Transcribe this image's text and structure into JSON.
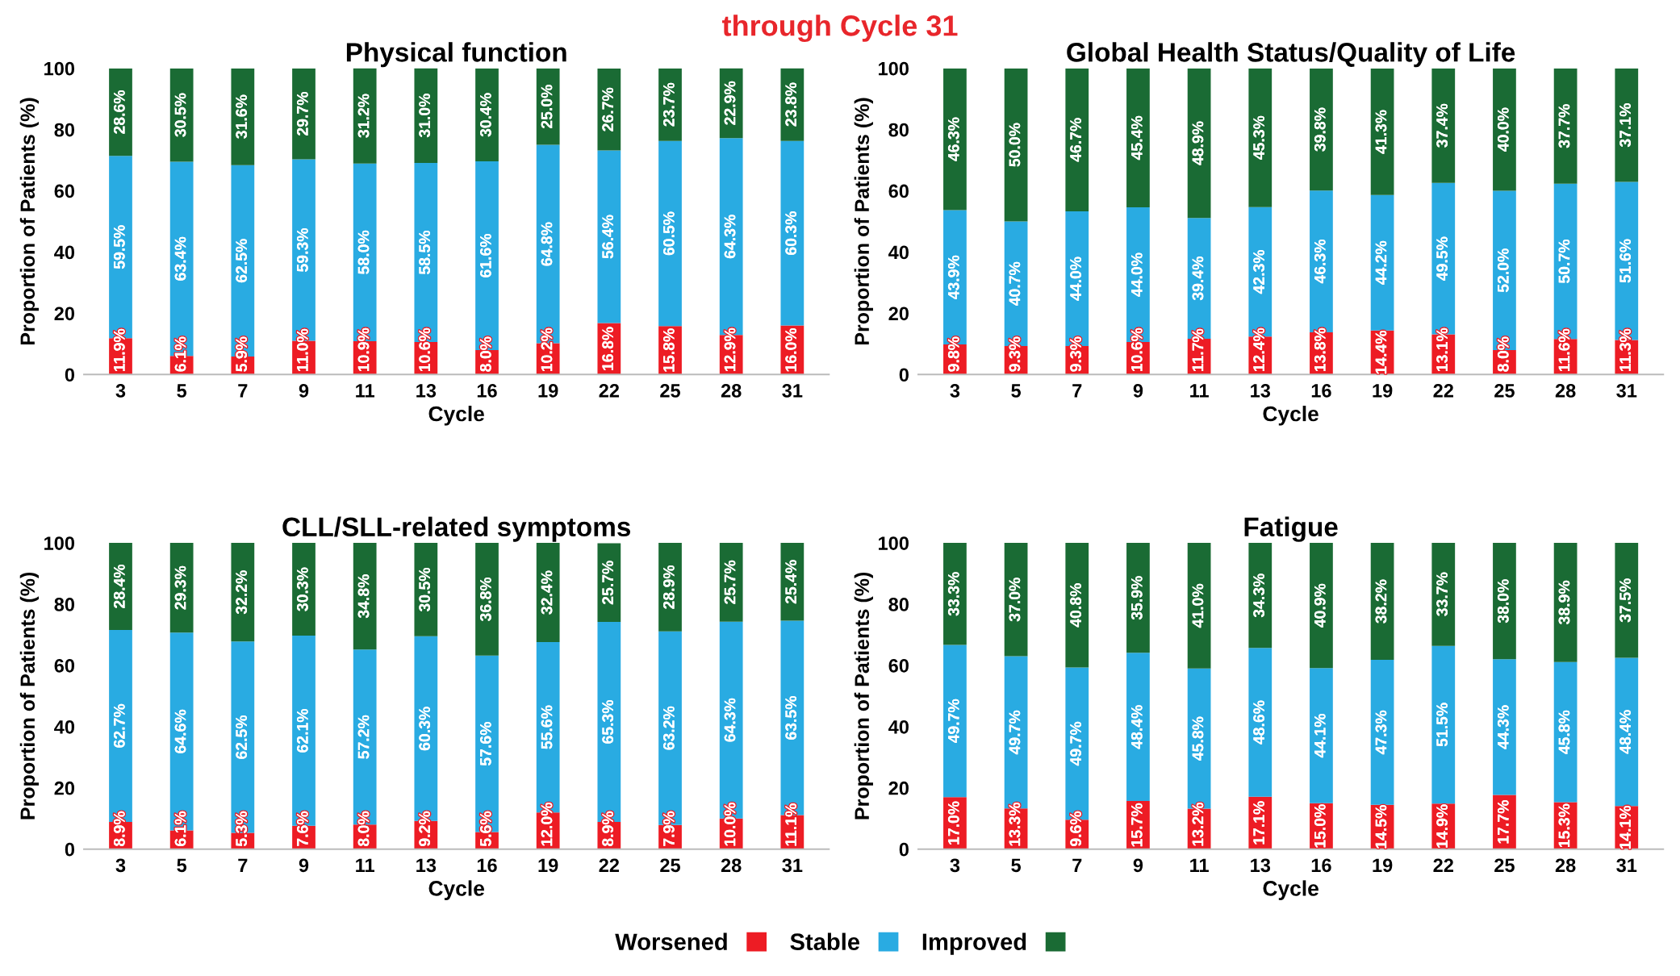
{
  "chart_data": [
    {
      "type": "bar",
      "stacked": true,
      "title": "Physical function",
      "xlabel": "Cycle",
      "ylabel": "Proportion of Patients (%)",
      "annotations": [
        "through Cycle 31"
      ],
      "categories": [
        "3",
        "5",
        "7",
        "9",
        "11",
        "13",
        "16",
        "19",
        "22",
        "25",
        "28",
        "31"
      ],
      "ylim": [
        0,
        100
      ],
      "yticks": [
        0,
        20,
        40,
        60,
        80,
        100
      ],
      "grid": false,
      "series": [
        {
          "color": "#ed1c24",
          "values": [
            11.9,
            6.1,
            5.9,
            11.0,
            10.9,
            10.6,
            8.0,
            10.2,
            16.8,
            15.8,
            12.9,
            16.0
          ],
          "value_labels": [
            "11.9%",
            "6.1%",
            "5.9%",
            "11.0%",
            "10.9%",
            "10.6%",
            "8.0%",
            "10.2%",
            "16.8%",
            "15.8%",
            "12.9%",
            "16.0%"
          ]
        },
        {
          "color": "#29abe2",
          "values": [
            59.5,
            63.4,
            62.5,
            59.3,
            58.0,
            58.5,
            61.6,
            64.8,
            56.4,
            60.5,
            64.3,
            60.3
          ],
          "value_labels": [
            "59.5%",
            "63.4%",
            "62.5%",
            "59.3%",
            "58.0%",
            "58.5%",
            "61.6%",
            "64.8%",
            "56.4%",
            "60.5%",
            "64.3%",
            "60.3%"
          ]
        },
        {
          "color": "#1a6b34",
          "values": [
            28.6,
            30.5,
            31.6,
            29.7,
            31.2,
            31.0,
            30.4,
            25.0,
            26.7,
            23.7,
            22.9,
            23.8
          ],
          "value_labels": [
            "28.6%",
            "30.5%",
            "31.6%",
            "29.7%",
            "31.2%",
            "31.0%",
            "30.4%",
            "25.0%",
            "26.7%",
            "23.7%",
            "22.9%",
            "23.8%"
          ]
        }
      ]
    },
    {
      "type": "bar",
      "stacked": true,
      "title": "Global Health Status/Quality of Life",
      "xlabel": "Cycle",
      "ylabel": "Proportion of Patients (%)",
      "categories": [
        "3",
        "5",
        "7",
        "9",
        "11",
        "13",
        "16",
        "19",
        "22",
        "25",
        "28",
        "31"
      ],
      "ylim": [
        0,
        100
      ],
      "yticks": [
        0,
        20,
        40,
        60,
        80,
        100
      ],
      "grid": false,
      "series": [
        {
          "color": "#ed1c24",
          "values": [
            9.8,
            9.3,
            9.3,
            10.6,
            11.7,
            12.4,
            13.8,
            14.4,
            13.1,
            8.0,
            11.6,
            11.3
          ],
          "value_labels": [
            "9.8%",
            "9.3%",
            "9.3%",
            "10.6%",
            "11.7%",
            "12.4%",
            "13.8%",
            "14.4%",
            "13.1%",
            "8.0%",
            "11.6%",
            "11.3%"
          ]
        },
        {
          "color": "#29abe2",
          "values": [
            43.9,
            40.7,
            44.0,
            44.0,
            39.4,
            42.3,
            46.3,
            44.2,
            49.5,
            52.0,
            50.7,
            51.6
          ],
          "value_labels": [
            "43.9%",
            "40.7%",
            "44.0%",
            "44.0%",
            "39.4%",
            "42.3%",
            "46.3%",
            "44.2%",
            "49.5%",
            "52.0%",
            "50.7%",
            "51.6%"
          ]
        },
        {
          "color": "#1a6b34",
          "values": [
            46.3,
            50.0,
            46.7,
            45.4,
            48.9,
            45.3,
            39.8,
            41.3,
            37.4,
            40.0,
            37.7,
            37.1
          ],
          "value_labels": [
            "46.3%",
            "50.0%",
            "46.7%",
            "45.4%",
            "48.9%",
            "45.3%",
            "39.8%",
            "41.3%",
            "37.4%",
            "40.0%",
            "37.7%",
            "37.1%"
          ]
        }
      ]
    },
    {
      "type": "bar",
      "stacked": true,
      "title": "CLL/SLL-related symptoms",
      "xlabel": "Cycle",
      "ylabel": "Proportion of Patients (%)",
      "categories": [
        "3",
        "5",
        "7",
        "9",
        "11",
        "13",
        "16",
        "19",
        "22",
        "25",
        "28",
        "31"
      ],
      "ylim": [
        0,
        100
      ],
      "yticks": [
        0,
        20,
        40,
        60,
        80,
        100
      ],
      "grid": false,
      "series": [
        {
          "color": "#ed1c24",
          "values": [
            8.9,
            6.1,
            5.3,
            7.6,
            8.0,
            9.2,
            5.6,
            12.0,
            8.9,
            7.9,
            10.0,
            11.1
          ],
          "value_labels": [
            "8.9%",
            "6.1%",
            "5.3%",
            "7.6%",
            "8.0%",
            "9.2%",
            "5.6%",
            "12.0%",
            "8.9%",
            "7.9%",
            "10.0%",
            "11.1%"
          ]
        },
        {
          "color": "#29abe2",
          "values": [
            62.7,
            64.6,
            62.5,
            62.1,
            57.2,
            60.3,
            57.6,
            55.6,
            65.3,
            63.2,
            64.3,
            63.5
          ],
          "value_labels": [
            "62.7%",
            "64.6%",
            "62.5%",
            "62.1%",
            "57.2%",
            "60.3%",
            "57.6%",
            "55.6%",
            "65.3%",
            "63.2%",
            "64.3%",
            "63.5%"
          ]
        },
        {
          "color": "#1a6b34",
          "values": [
            28.4,
            29.3,
            32.2,
            30.3,
            34.8,
            30.5,
            36.8,
            32.4,
            25.7,
            28.9,
            25.7,
            25.4
          ],
          "value_labels": [
            "28.4%",
            "29.3%",
            "32.2%",
            "30.3%",
            "34.8%",
            "30.5%",
            "36.8%",
            "32.4%",
            "25.7%",
            "28.9%",
            "25.7%",
            "25.4%"
          ]
        }
      ]
    },
    {
      "type": "bar",
      "stacked": true,
      "title": "Fatigue",
      "xlabel": "Cycle",
      "ylabel": "Proportion of Patients (%)",
      "legend": "bottom",
      "categories": [
        "3",
        "5",
        "7",
        "9",
        "11",
        "13",
        "16",
        "19",
        "22",
        "25",
        "28",
        "31"
      ],
      "ylim": [
        0,
        100
      ],
      "yticks": [
        0,
        20,
        40,
        60,
        80,
        100
      ],
      "grid": false,
      "series": [
        {
          "name": "Worsened",
          "color": "#ed1c24",
          "values": [
            17.0,
            13.3,
            9.6,
            15.7,
            13.2,
            17.1,
            15.0,
            14.5,
            14.9,
            17.7,
            15.3,
            14.1
          ],
          "value_labels": [
            "17.0%",
            "13.3%",
            "9.6%",
            "15.7%",
            "13.2%",
            "17.1%",
            "15.0%",
            "14.5%",
            "14.9%",
            "17.7%",
            "15.3%",
            "14.1%"
          ]
        },
        {
          "name": "Stable",
          "color": "#29abe2",
          "values": [
            49.7,
            49.7,
            49.7,
            48.4,
            45.8,
            48.6,
            44.1,
            47.3,
            51.5,
            44.3,
            45.8,
            48.4
          ],
          "value_labels": [
            "49.7%",
            "49.7%",
            "49.7%",
            "48.4%",
            "45.8%",
            "48.6%",
            "44.1%",
            "47.3%",
            "51.5%",
            "44.3%",
            "45.8%",
            "48.4%"
          ]
        },
        {
          "name": "Improved",
          "color": "#1a6b34",
          "values": [
            33.3,
            37.0,
            40.8,
            35.9,
            41.0,
            34.3,
            40.9,
            38.2,
            33.7,
            38.0,
            38.9,
            37.5
          ],
          "value_labels": [
            "33.3%",
            "37.0%",
            "40.8%",
            "35.9%",
            "41.0%",
            "34.3%",
            "40.9%",
            "38.2%",
            "33.7%",
            "38.0%",
            "38.9%",
            "37.5%"
          ]
        }
      ]
    }
  ]
}
